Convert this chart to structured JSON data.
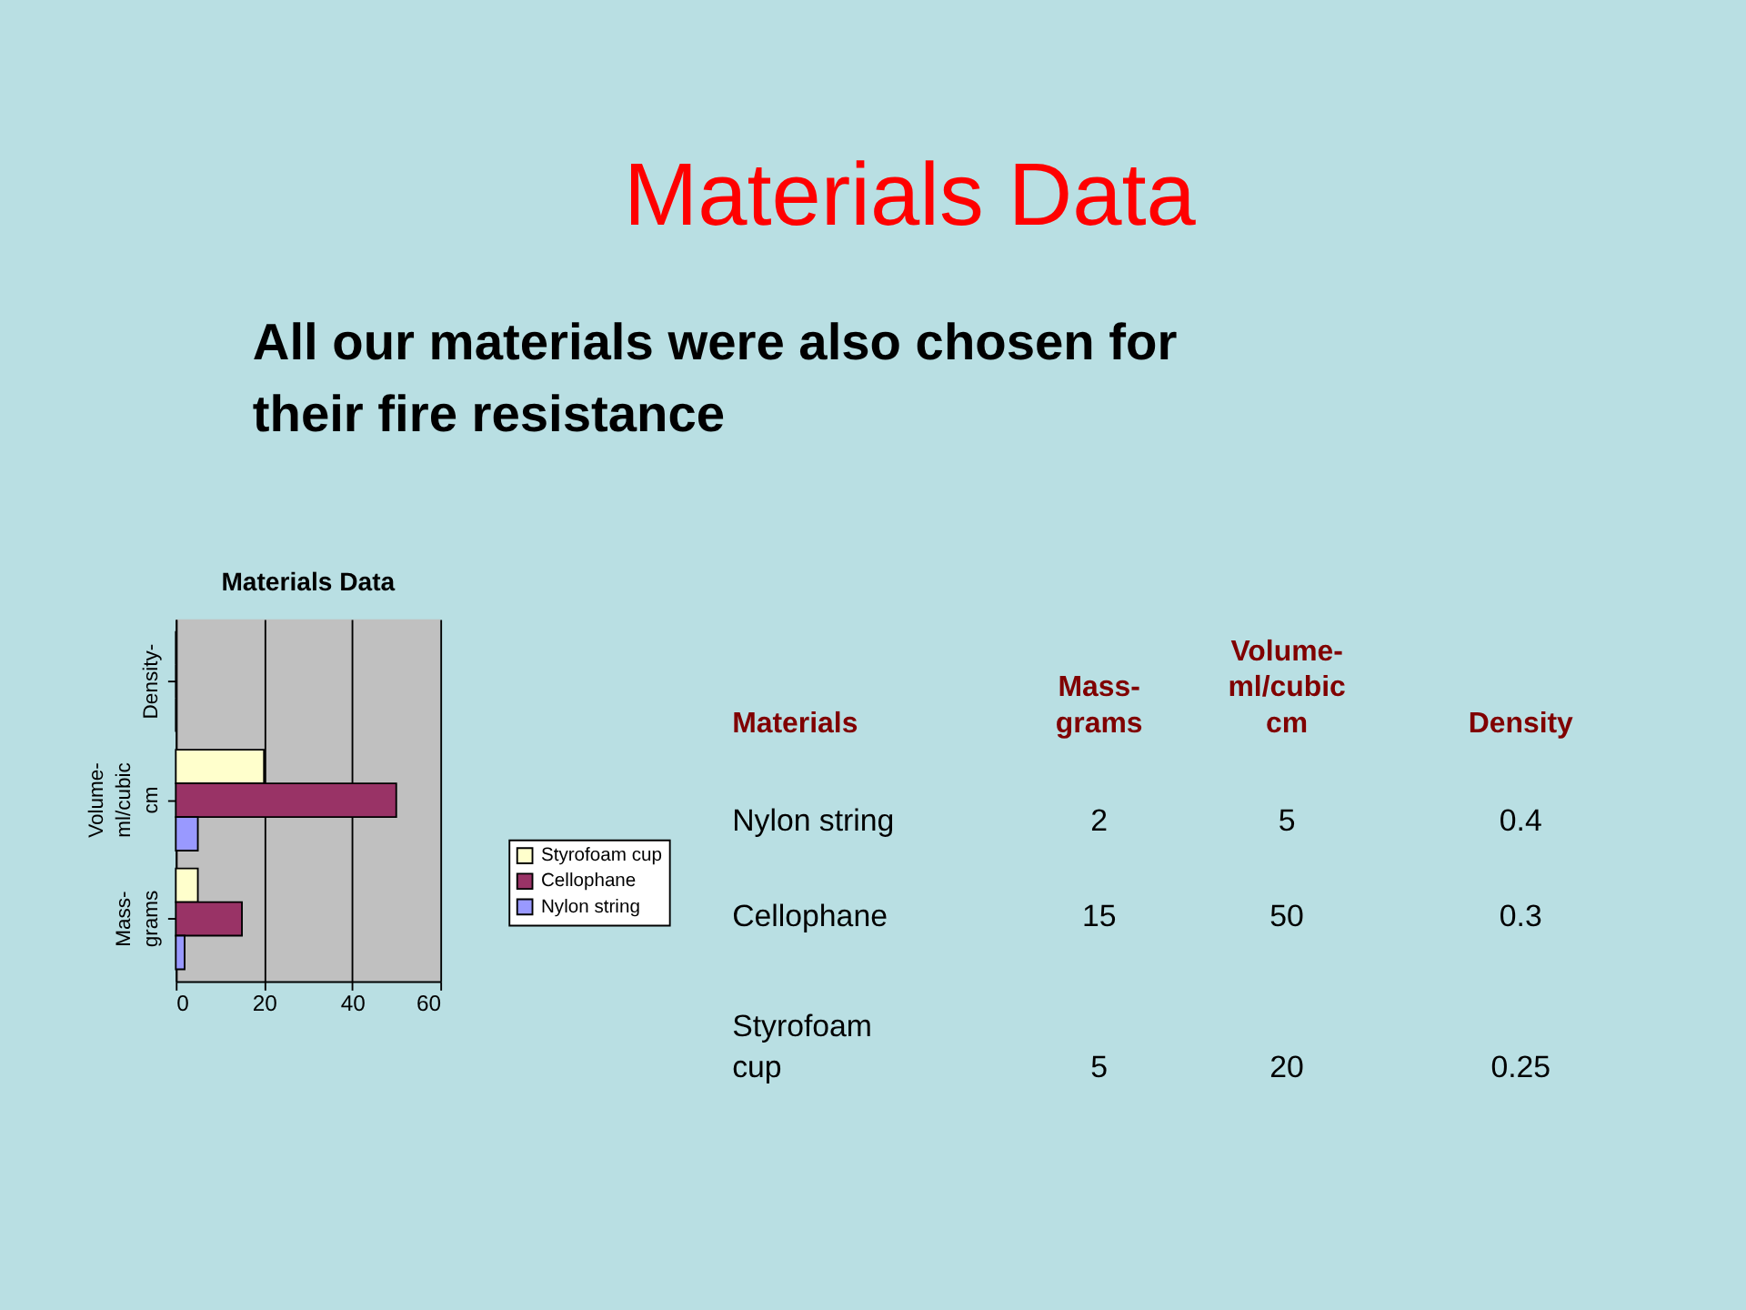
{
  "chart_data": [
    {
      "type": "bar",
      "orientation": "horizontal",
      "title": "Materials Data",
      "annotations": [
        "Materials Data",
        "All our materials were also chosen for their fire resistance"
      ],
      "categories": [
        "Density-",
        "Volume-ml/cubic cm",
        "Mass-grams"
      ],
      "series": [
        {
          "name": "Styrofoam cup",
          "color": "#ffffcc",
          "values": [
            0,
            20,
            5
          ]
        },
        {
          "name": "Cellophane",
          "color": "#993366",
          "values": [
            0,
            50,
            15
          ]
        },
        {
          "name": "Nylon string",
          "color": "#9999ff",
          "values": [
            0,
            5,
            2
          ]
        }
      ],
      "xlim": [
        0,
        60
      ],
      "xticks": [
        0,
        20,
        40,
        60
      ],
      "grid": "x",
      "legend": "right"
    },
    {
      "type": "other",
      "annotations": [
        "Materials"
      ],
      "categories": [
        "Mass-grams",
        "Volume-ml/cubic cm",
        "Density"
      ],
      "series": [
        {
          "name": "Nylon string",
          "values": [
            2,
            5,
            0.4
          ]
        },
        {
          "name": "Cellophane",
          "values": [
            15,
            50,
            0.3
          ]
        },
        {
          "name": "Styrofoam cup",
          "values": [
            5,
            20,
            0.25
          ]
        }
      ],
      "data_labels": true
    }
  ]
}
